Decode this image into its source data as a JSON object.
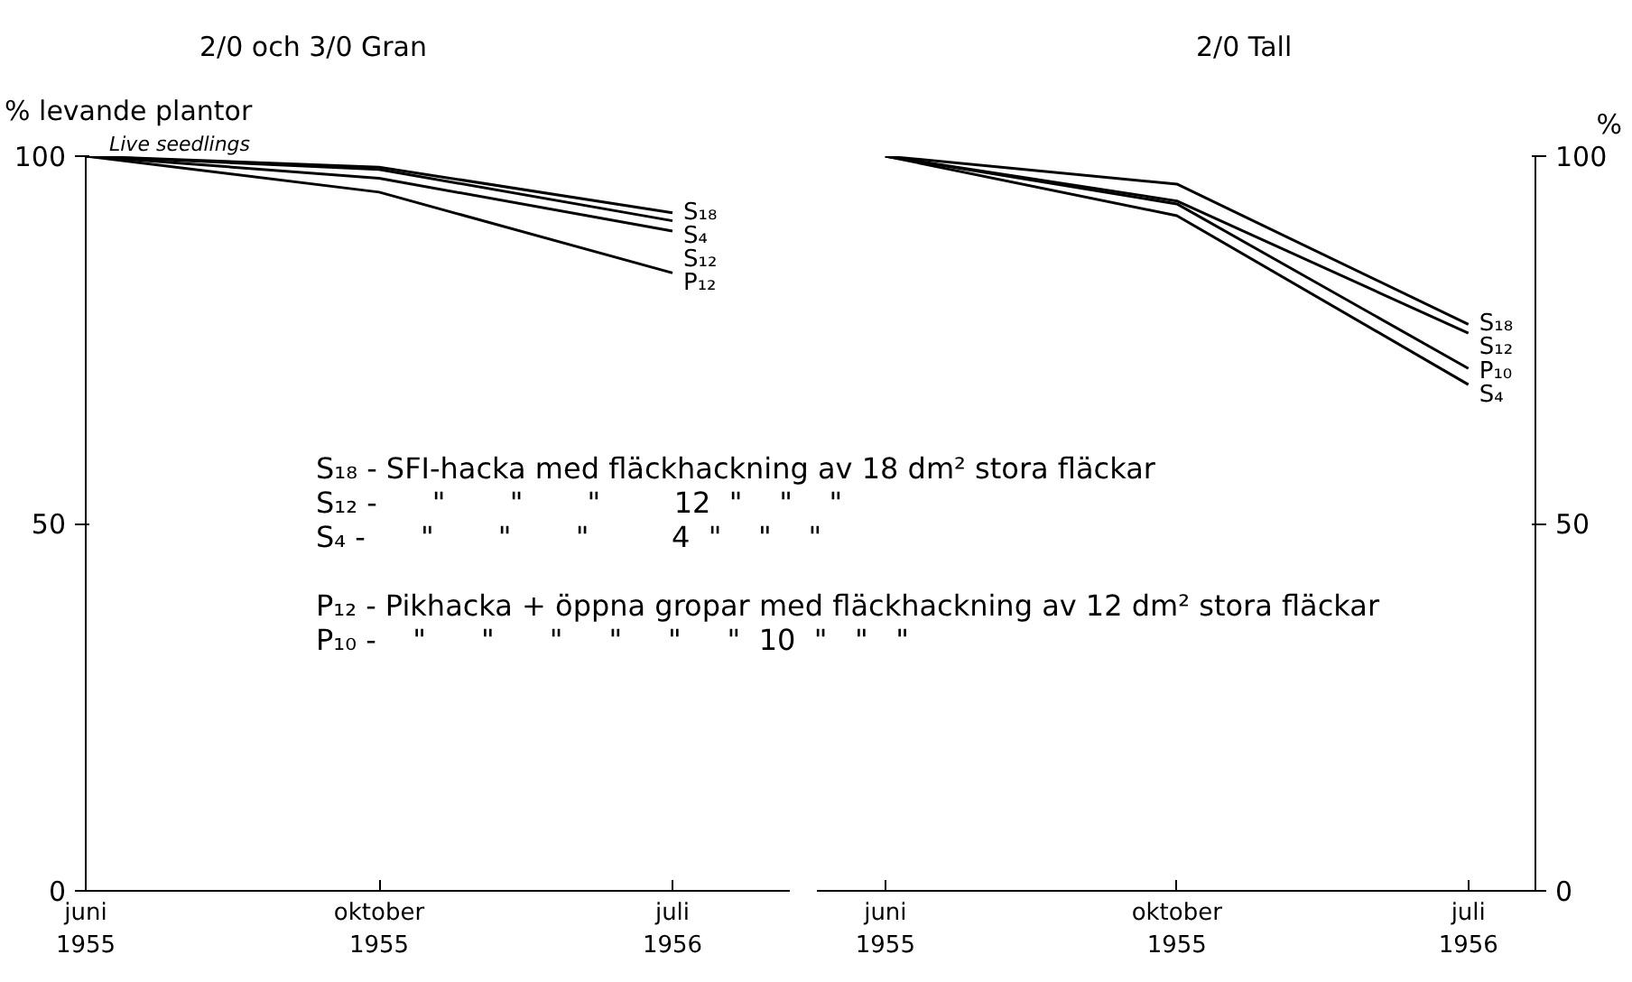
{
  "chart_data": [
    {
      "type": "line",
      "title": "2/0 och 3/0 Gran",
      "ylabel": "% levande plantor",
      "categories": [
        "juni\n1955",
        "oktober\n1955",
        "juli\n1956"
      ],
      "ylim": [
        0,
        100
      ],
      "yticks": [
        0,
        50,
        100
      ],
      "grid": false,
      "marker": "none",
      "line_style": "solid",
      "annotations": [
        "Live seedlings",
        "S₁₈ - SFI-hacka med fläckhackning av 18 dm² stora fläckar",
        "S₁₂ -      \"       \"       \"        12  \"    \"    \"",
        "S₄ -      \"       \"       \"         4  \"    \"    \"",
        "P₁₂ - Pikhacka + öppna gropar med fläckhackning av 12 dm² stora fläckar",
        "P₁₀ -    \"      \"      \"     \"     \"     \"  10  \"   \"   \""
      ],
      "series": [
        {
          "name": "S₁₈",
          "color": "#000000",
          "values": [
            100,
            98.5,
            92.3
          ]
        },
        {
          "name": "S₄",
          "color": "#000000",
          "values": [
            100,
            98.2,
            91.2
          ]
        },
        {
          "name": "S₁₂",
          "color": "#000000",
          "values": [
            100,
            97.0,
            89.8
          ]
        },
        {
          "name": "P₁₂",
          "color": "#000000",
          "values": [
            100,
            95.1,
            84.1
          ]
        }
      ]
    },
    {
      "type": "line",
      "title": "2/0 Tall",
      "ylabel": "%",
      "categories": [
        "juni\n1955",
        "oktober\n1955",
        "juli\n1956"
      ],
      "ylim": [
        0,
        100
      ],
      "yticks": [
        0,
        50,
        100
      ],
      "grid": false,
      "marker": "none",
      "line_style": "solid",
      "series": [
        {
          "name": "S₁₈",
          "color": "#000000",
          "values": [
            100,
            96.2,
            77.1
          ]
        },
        {
          "name": "S₁₂",
          "color": "#000000",
          "values": [
            100,
            93.9,
            75.9
          ]
        },
        {
          "name": "P₁₀",
          "color": "#000000",
          "values": [
            100,
            93.5,
            71.1
          ]
        },
        {
          "name": "S₄",
          "color": "#000000",
          "values": [
            100,
            91.9,
            68.9
          ]
        }
      ]
    }
  ]
}
